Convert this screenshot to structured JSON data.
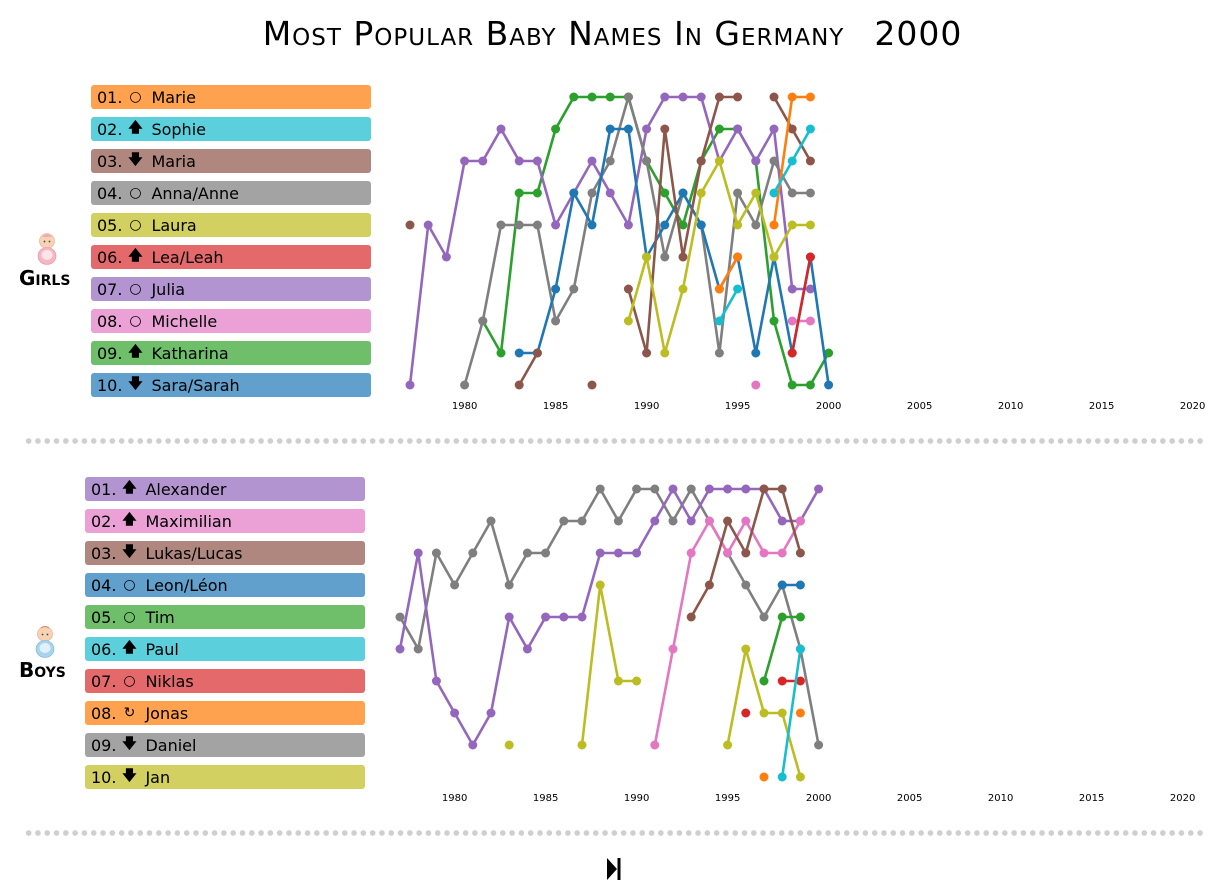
{
  "title": "Most Popular Baby Names In Germany",
  "year": "2000",
  "icons": {
    "girls": "baby-girl-icon",
    "boys": "baby-boy-icon",
    "up": "arrow-up-icon",
    "down": "arrow-down-icon",
    "same": "circle-icon",
    "new": "reload-icon",
    "player": "skip-forward-icon"
  },
  "girls": {
    "label": "Girls",
    "ranking": [
      {
        "rank": "01.",
        "name": "Marie",
        "trend": "same",
        "color": "#ffa24f"
      },
      {
        "rank": "02.",
        "name": "Sophie",
        "trend": "up",
        "color": "#5bcfdb"
      },
      {
        "rank": "03.",
        "name": "Maria",
        "trend": "down",
        "color": "#b0877e"
      },
      {
        "rank": "04.",
        "name": "Anna/Anne",
        "trend": "same",
        "color": "#a3a3a3"
      },
      {
        "rank": "05.",
        "name": "Laura",
        "trend": "same",
        "color": "#d1d061"
      },
      {
        "rank": "06.",
        "name": "Lea/Leah",
        "trend": "up",
        "color": "#e3696a"
      },
      {
        "rank": "07.",
        "name": "Julia",
        "trend": "same",
        "color": "#b295d0"
      },
      {
        "rank": "08.",
        "name": "Michelle",
        "trend": "same",
        "color": "#eba1d6"
      },
      {
        "rank": "09.",
        "name": "Katharina",
        "trend": "up",
        "color": "#6ebe6a"
      },
      {
        "rank": "10.",
        "name": "Sara/Sarah",
        "trend": "down",
        "color": "#619fcc"
      }
    ]
  },
  "boys": {
    "label": "Boys",
    "ranking": [
      {
        "rank": "01.",
        "name": "Alexander",
        "trend": "up",
        "color": "#b295d0"
      },
      {
        "rank": "02.",
        "name": "Maximilian",
        "trend": "up",
        "color": "#eba1d6"
      },
      {
        "rank": "03.",
        "name": "Lukas/Lucas",
        "trend": "down",
        "color": "#b0877e"
      },
      {
        "rank": "04.",
        "name": "Leon/Léon",
        "trend": "same",
        "color": "#619fcc"
      },
      {
        "rank": "05.",
        "name": "Tim",
        "trend": "same",
        "color": "#6ebe6a"
      },
      {
        "rank": "06.",
        "name": "Paul",
        "trend": "up",
        "color": "#5bcfdb"
      },
      {
        "rank": "07.",
        "name": "Niklas",
        "trend": "same",
        "color": "#e3696a"
      },
      {
        "rank": "08.",
        "name": "Jonas",
        "trend": "new",
        "color": "#ffa24f"
      },
      {
        "rank": "09.",
        "name": "Daniel",
        "trend": "down",
        "color": "#a3a3a3"
      },
      {
        "rank": "10.",
        "name": "Jan",
        "trend": "down",
        "color": "#d1d061"
      }
    ]
  },
  "chart_data": [
    {
      "type": "line",
      "xlim": [
        1975,
        2022
      ],
      "ylim": [
        10,
        1
      ],
      "y_reversed": true,
      "x_ticks": [
        1980,
        1985,
        1990,
        1995,
        2000,
        2005,
        2010,
        2015,
        2020
      ],
      "grid": false,
      "series": [
        {
          "color": "#2ca02c",
          "points": [
            [
              1981,
              8
            ],
            [
              1982,
              9
            ],
            [
              1983,
              4
            ],
            [
              1984,
              4
            ],
            [
              1985,
              2
            ],
            [
              1986,
              1
            ],
            [
              1987,
              1
            ],
            [
              1988,
              1
            ],
            [
              1989,
              1
            ],
            [
              1990,
              3
            ],
            [
              1991,
              4
            ],
            [
              1992,
              5
            ],
            [
              1993,
              3
            ],
            [
              1994,
              2
            ],
            [
              1995,
              2
            ],
            [
              1996,
              3
            ],
            [
              1997,
              8
            ],
            [
              1998,
              10
            ],
            [
              1999,
              10
            ],
            [
              2000,
              9
            ]
          ]
        },
        {
          "color": "#9467bd",
          "points": [
            [
              1977,
              10
            ],
            [
              1978,
              5
            ],
            [
              1979,
              6
            ],
            [
              1980,
              3
            ],
            [
              1981,
              3
            ],
            [
              1982,
              2
            ],
            [
              1983,
              3
            ],
            [
              1984,
              3
            ],
            [
              1985,
              5
            ],
            [
              1986,
              4
            ],
            [
              1987,
              3
            ],
            [
              1988,
              4
            ],
            [
              1989,
              5
            ],
            [
              1990,
              2
            ],
            [
              1991,
              1
            ],
            [
              1992,
              1
            ],
            [
              1993,
              1
            ],
            [
              1994,
              3
            ],
            [
              1995,
              2
            ],
            [
              1996,
              3
            ],
            [
              1997,
              2
            ],
            [
              1998,
              7
            ],
            [
              1999,
              7
            ]
          ]
        },
        {
          "color": "#7f7f7f",
          "points": [
            [
              1980,
              10
            ],
            [
              1981,
              8
            ],
            [
              1982,
              5
            ],
            [
              1983,
              5
            ],
            [
              1984,
              5
            ],
            [
              1985,
              8
            ],
            [
              1986,
              7
            ],
            [
              1987,
              4
            ],
            [
              1988,
              3
            ],
            [
              1989,
              1
            ],
            [
              1990,
              3
            ],
            [
              1991,
              6
            ],
            [
              1992,
              4
            ],
            [
              1993,
              5
            ],
            [
              1994,
              9
            ],
            [
              1995,
              4
            ],
            [
              1996,
              5
            ],
            [
              1997,
              3
            ],
            [
              1998,
              4
            ],
            [
              1999,
              4
            ]
          ]
        },
        {
          "color": "#1f77b4",
          "points": [
            [
              1983,
              9
            ],
            [
              1984,
              9
            ],
            [
              1985,
              7
            ],
            [
              1986,
              4
            ],
            [
              1987,
              5
            ],
            [
              1988,
              2
            ],
            [
              1989,
              2
            ],
            [
              1990,
              6
            ],
            [
              1991,
              5
            ],
            [
              1992,
              4
            ],
            [
              1993,
              5
            ],
            [
              1994,
              7
            ],
            [
              1995,
              6
            ],
            [
              1996,
              9
            ],
            [
              1997,
              6
            ],
            [
              1998,
              9
            ],
            [
              1999,
              6
            ],
            [
              2000,
              10
            ]
          ]
        },
        {
          "color": "#8c564b",
          "points": [
            [
              1977,
              5
            ]
          ]
        },
        {
          "color": "#8c564b",
          "points": [
            [
              1983,
              10
            ],
            [
              1984,
              9
            ]
          ]
        },
        {
          "color": "#8c564b",
          "points": [
            [
              1987,
              10
            ]
          ]
        },
        {
          "color": "#8c564b",
          "points": [
            [
              1989,
              7
            ],
            [
              1990,
              9
            ],
            [
              1991,
              2
            ],
            [
              1992,
              6
            ],
            [
              1993,
              3
            ],
            [
              1994,
              1
            ],
            [
              1995,
              1
            ]
          ]
        },
        {
          "color": "#8c564b",
          "points": [
            [
              1997,
              1
            ],
            [
              1998,
              2
            ],
            [
              1999,
              3
            ]
          ]
        },
        {
          "color": "#bcbd22",
          "points": [
            [
              1989,
              8
            ],
            [
              1990,
              6
            ],
            [
              1991,
              9
            ],
            [
              1992,
              7
            ],
            [
              1993,
              4
            ],
            [
              1994,
              3
            ],
            [
              1995,
              5
            ],
            [
              1996,
              4
            ],
            [
              1997,
              6
            ],
            [
              1998,
              5
            ],
            [
              1999,
              5
            ]
          ]
        },
        {
          "color": "#ff7f0e",
          "points": [
            [
              1994,
              7
            ],
            [
              1995,
              6
            ]
          ]
        },
        {
          "color": "#ff7f0e",
          "points": [
            [
              1997,
              5
            ],
            [
              1998,
              1
            ],
            [
              1999,
              1
            ]
          ]
        },
        {
          "color": "#17becf",
          "points": [
            [
              1994,
              8
            ],
            [
              1995,
              7
            ]
          ]
        },
        {
          "color": "#17becf",
          "points": [
            [
              1997,
              4
            ],
            [
              1998,
              3
            ],
            [
              1999,
              2
            ]
          ]
        },
        {
          "color": "#e377c2",
          "points": [
            [
              1996,
              10
            ]
          ]
        },
        {
          "color": "#e377c2",
          "points": [
            [
              1998,
              8
            ],
            [
              1999,
              8
            ]
          ]
        },
        {
          "color": "#d62728",
          "points": [
            [
              1998,
              9
            ],
            [
              1999,
              6
            ]
          ]
        }
      ]
    },
    {
      "type": "line",
      "xlim": [
        1975,
        2022
      ],
      "ylim": [
        10,
        1
      ],
      "y_reversed": true,
      "x_ticks": [
        1980,
        1985,
        1990,
        1995,
        2000,
        2005,
        2010,
        2015,
        2020
      ],
      "grid": false,
      "series": [
        {
          "color": "#7f7f7f",
          "points": [
            [
              1977,
              5
            ],
            [
              1978,
              6
            ],
            [
              1979,
              3
            ],
            [
              1980,
              4
            ],
            [
              1981,
              3
            ],
            [
              1982,
              2
            ],
            [
              1983,
              4
            ],
            [
              1984,
              3
            ],
            [
              1985,
              3
            ],
            [
              1986,
              2
            ],
            [
              1987,
              2
            ],
            [
              1988,
              1
            ],
            [
              1989,
              2
            ],
            [
              1990,
              1
            ],
            [
              1991,
              1
            ],
            [
              1992,
              2
            ],
            [
              1993,
              1
            ],
            [
              1994,
              2
            ],
            [
              1995,
              3
            ],
            [
              1996,
              4
            ],
            [
              1997,
              5
            ],
            [
              1998,
              4
            ],
            [
              1999,
              6
            ],
            [
              2000,
              9
            ]
          ]
        },
        {
          "color": "#9467bd",
          "points": [
            [
              1977,
              6
            ],
            [
              1978,
              3
            ],
            [
              1979,
              7
            ],
            [
              1980,
              8
            ],
            [
              1981,
              9
            ],
            [
              1982,
              8
            ],
            [
              1983,
              5
            ],
            [
              1984,
              6
            ],
            [
              1985,
              5
            ],
            [
              1986,
              5
            ],
            [
              1987,
              5
            ],
            [
              1988,
              3
            ],
            [
              1989,
              3
            ],
            [
              1990,
              3
            ],
            [
              1991,
              2
            ],
            [
              1992,
              1
            ],
            [
              1993,
              2
            ],
            [
              1994,
              1
            ],
            [
              1995,
              1
            ],
            [
              1996,
              1
            ],
            [
              1997,
              1
            ],
            [
              1998,
              2
            ],
            [
              1999,
              2
            ],
            [
              2000,
              1
            ]
          ]
        },
        {
          "color": "#bcbd22",
          "points": [
            [
              1983,
              9
            ]
          ]
        },
        {
          "color": "#bcbd22",
          "points": [
            [
              1987,
              9
            ],
            [
              1988,
              4
            ],
            [
              1989,
              7
            ],
            [
              1990,
              7
            ]
          ]
        },
        {
          "color": "#bcbd22",
          "points": [
            [
              1995,
              9
            ],
            [
              1996,
              6
            ],
            [
              1997,
              8
            ],
            [
              1998,
              8
            ],
            [
              1999,
              10
            ]
          ]
        },
        {
          "color": "#e377c2",
          "points": [
            [
              1991,
              9
            ],
            [
              1992,
              6
            ],
            [
              1993,
              3
            ],
            [
              1994,
              2
            ],
            [
              1995,
              3
            ],
            [
              1996,
              2
            ],
            [
              1997,
              3
            ],
            [
              1998,
              3
            ],
            [
              1999,
              2
            ]
          ]
        },
        {
          "color": "#8c564b",
          "points": [
            [
              1993,
              5
            ],
            [
              1994,
              4
            ],
            [
              1995,
              2
            ],
            [
              1996,
              3
            ],
            [
              1997,
              1
            ],
            [
              1998,
              1
            ],
            [
              1999,
              3
            ]
          ]
        },
        {
          "color": "#2ca02c",
          "points": [
            [
              1997,
              7
            ],
            [
              1998,
              5
            ],
            [
              1999,
              5
            ]
          ]
        },
        {
          "color": "#d62728",
          "points": [
            [
              1996,
              8
            ]
          ]
        },
        {
          "color": "#d62728",
          "points": [
            [
              1998,
              7
            ],
            [
              1999,
              7
            ]
          ]
        },
        {
          "color": "#1f77b4",
          "points": [
            [
              1998,
              4
            ],
            [
              1999,
              4
            ]
          ]
        },
        {
          "color": "#ff7f0e",
          "points": [
            [
              1997,
              10
            ]
          ]
        },
        {
          "color": "#ff7f0e",
          "points": [
            [
              1999,
              8
            ]
          ]
        },
        {
          "color": "#17becf",
          "points": [
            [
              1998,
              10
            ],
            [
              1999,
              6
            ]
          ]
        }
      ]
    }
  ]
}
